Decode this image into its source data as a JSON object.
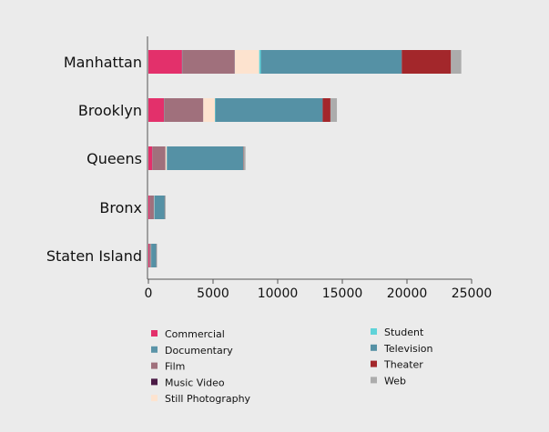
{
  "chart_data": {
    "type": "bar",
    "orientation": "horizontal",
    "stacked": true,
    "categories": [
      "Manhattan",
      "Brooklyn",
      "Queens",
      "Bronx",
      "Staten Island"
    ],
    "series": [
      {
        "name": "Commercial",
        "color": "#e3306b",
        "values": [
          2600,
          1200,
          300,
          100,
          80
        ]
      },
      {
        "name": "Documentary",
        "color": "#5b94a8",
        "values": [
          30,
          20,
          10,
          10,
          10
        ]
      },
      {
        "name": "Film",
        "color": "#a0707c",
        "values": [
          4000,
          3000,
          1000,
          300,
          100
        ]
      },
      {
        "name": "Music Video",
        "color": "#4a1a45",
        "values": [
          40,
          20,
          10,
          10,
          10
        ]
      },
      {
        "name": "Still Photography",
        "color": "#fde3cf",
        "values": [
          1900,
          900,
          100,
          30,
          10
        ]
      },
      {
        "name": "Student",
        "color": "#5fd3d9",
        "values": [
          130,
          40,
          20,
          10,
          10
        ]
      },
      {
        "name": "Television",
        "color": "#5591a5",
        "values": [
          10900,
          8300,
          5900,
          800,
          400
        ]
      },
      {
        "name": "Theater",
        "color": "#a3272b",
        "values": [
          3800,
          600,
          20,
          10,
          10
        ]
      },
      {
        "name": "Web",
        "color": "#acacac",
        "values": [
          800,
          500,
          150,
          70,
          40
        ]
      }
    ],
    "xlim": [
      0,
      25000
    ],
    "xticks": [
      "0",
      "5000",
      "10000",
      "15000",
      "20000",
      "25000"
    ],
    "xtick_values": [
      0,
      5000,
      10000,
      15000,
      20000,
      25000
    ],
    "legend_left": [
      "Commercial",
      "Documentary",
      "Film",
      "Music Video",
      "Still Photography"
    ],
    "legend_right": [
      "Student",
      "Television",
      "Theater",
      "Web"
    ],
    "legend_position": "bottom",
    "grid": false,
    "title": "",
    "xlabel": "",
    "ylabel": ""
  }
}
